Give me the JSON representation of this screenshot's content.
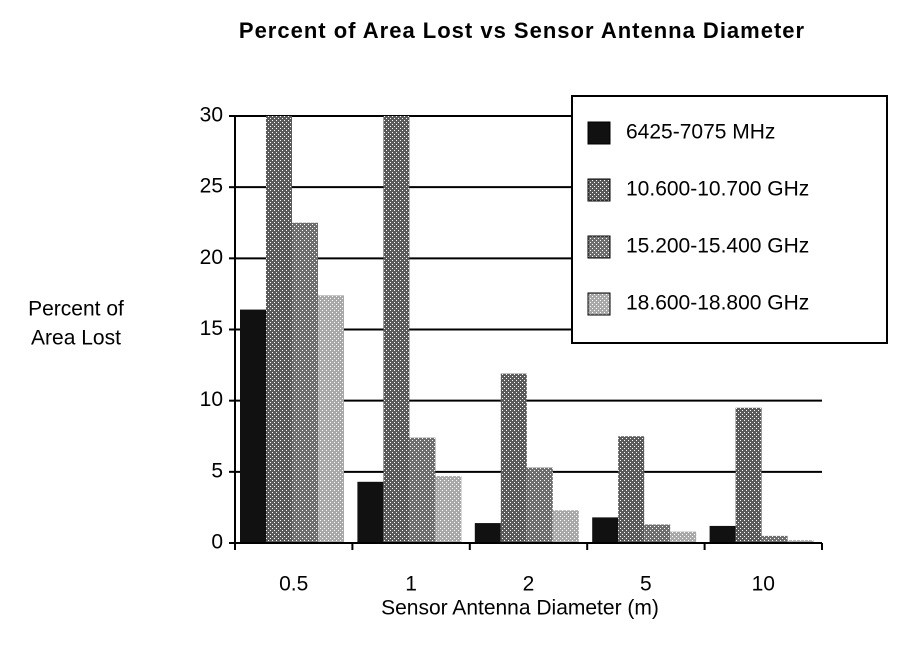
{
  "chart_data": {
    "type": "bar",
    "title": "Percent of Area Lost vs Sensor Antenna Diameter",
    "xlabel": "Sensor Antenna Diameter (m)",
    "ylabel": [
      "Percent of",
      "Area Lost"
    ],
    "categories": [
      "0.5",
      "1",
      "2",
      "5",
      "10"
    ],
    "series": [
      {
        "name": "6425-7075 MHz",
        "color": "#111111",
        "values": [
          16.4,
          4.3,
          1.4,
          1.8,
          1.2
        ]
      },
      {
        "name": "10.600-10.700 GHz",
        "color": "#5a5a5a",
        "values": [
          30,
          30,
          11.9,
          7.5,
          9.5
        ]
      },
      {
        "name": "15.200-15.400 GHz",
        "color": "#6e6e6e",
        "values": [
          22.5,
          7.4,
          5.3,
          1.3,
          0.5
        ]
      },
      {
        "name": "18.600-18.800 GHz",
        "color": "#a8a8a8",
        "values": [
          17.4,
          4.7,
          2.3,
          0.8,
          0.2
        ]
      }
    ],
    "ylim": [
      0,
      30
    ],
    "yticks": [
      0,
      5,
      10,
      15,
      20,
      25,
      30
    ],
    "grid": true,
    "legend": "upper right"
  }
}
